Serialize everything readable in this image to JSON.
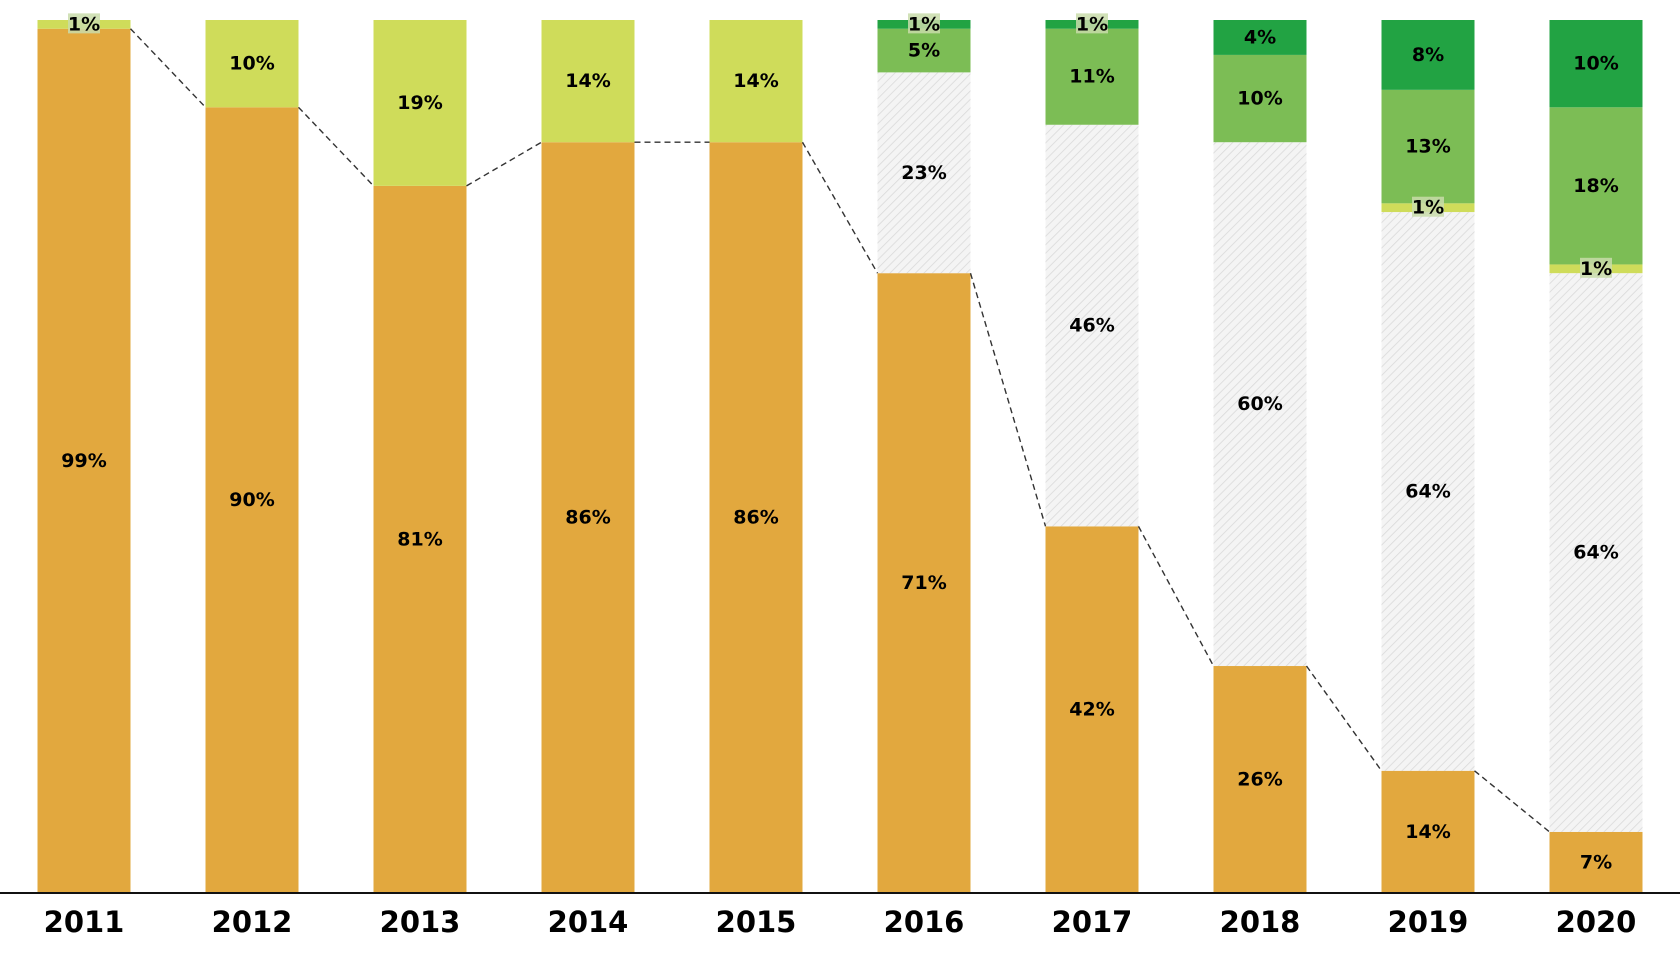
{
  "chart_data": {
    "type": "bar",
    "stacked": true,
    "title": "",
    "xlabel": "",
    "ylabel": "",
    "ylim": [
      0,
      100
    ],
    "grid": false,
    "categories": [
      "2011",
      "2012",
      "2013",
      "2014",
      "2015",
      "2016",
      "2017",
      "2018",
      "2019",
      "2020"
    ],
    "series": [
      {
        "name": "Series A (orange)",
        "color": "#e2a83e",
        "pattern": false,
        "values": [
          99,
          90,
          81,
          86,
          86,
          71,
          42,
          26,
          14,
          7
        ],
        "labels": [
          "99%",
          "90%",
          "81%",
          "86%",
          "86%",
          "71%",
          "42%",
          "26%",
          "14%",
          "7%"
        ]
      },
      {
        "name": "Series B (hatched grey)",
        "color": "#f2f2f2",
        "pattern": true,
        "values": [
          0,
          0,
          0,
          0,
          0,
          23,
          46,
          60,
          64,
          64
        ],
        "labels": [
          "",
          "",
          "",
          "",
          "",
          "23%",
          "46%",
          "60%",
          "64%",
          "64%"
        ]
      },
      {
        "name": "Series C (light yellow-green)",
        "color": "#cfdc5a",
        "pattern": false,
        "values": [
          1,
          10,
          19,
          14,
          14,
          0,
          0,
          0,
          1,
          1
        ],
        "labels": [
          "1%",
          "10%",
          "19%",
          "14%",
          "14%",
          "",
          "",
          "",
          "1%",
          "1%"
        ]
      },
      {
        "name": "Series D (medium green)",
        "color": "#7cbd55",
        "pattern": false,
        "values": [
          0,
          0,
          0,
          0,
          0,
          5,
          11,
          10,
          13,
          18
        ],
        "labels": [
          "",
          "",
          "",
          "",
          "",
          "5%",
          "11%",
          "10%",
          "13%",
          "18%"
        ]
      },
      {
        "name": "Series E (dark green)",
        "color": "#22a343",
        "pattern": false,
        "values": [
          0,
          0,
          0,
          0,
          0,
          1,
          1,
          4,
          8,
          10
        ],
        "labels": [
          "",
          "",
          "",
          "",
          "",
          "1%",
          "1%",
          "4%",
          "8%",
          "10%"
        ]
      }
    ],
    "connector": {
      "style": "dashed",
      "between": "top of Series A across bars"
    }
  }
}
